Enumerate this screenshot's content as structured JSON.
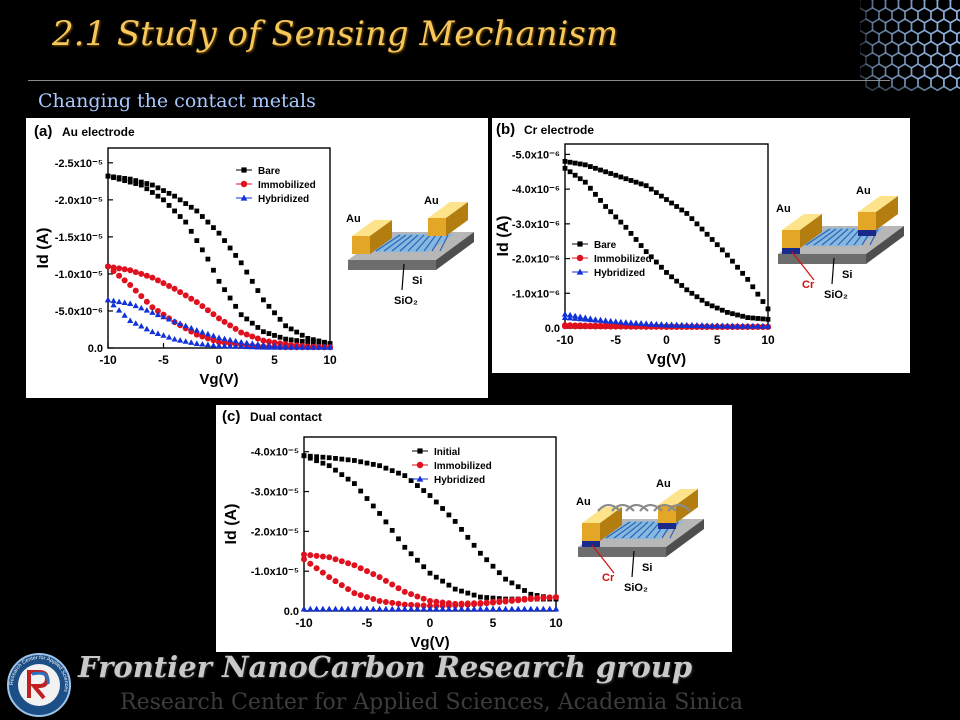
{
  "slide": {
    "title": "2.1 Study of Sensing Mechanism",
    "subtitle": "Changing the contact metals",
    "footer_group": "Frontier NanoCarbon Research group",
    "footer_institution": "Research Center for Applied Sciences, Academia Sinica",
    "logo_text": "Research Center for Applied Sciences",
    "accent_title": "#f6c75b",
    "accent_subtitle": "#a8c8ff"
  },
  "chart_data": [
    {
      "type": "line",
      "panel_label": "(a)",
      "title": "Au electrode",
      "xlabel": "Vg(V)",
      "ylabel": "Id (A)",
      "xlim": [
        -10,
        10
      ],
      "ylim": [
        0,
        2.7e-05
      ],
      "x_ticks": [
        -10,
        -5,
        0,
        5,
        10
      ],
      "x_tick_labels": [
        "-10",
        "-5",
        "0",
        "5",
        "10"
      ],
      "y_ticks": [
        0,
        5e-06,
        1e-05,
        1.5e-05,
        2e-05,
        2.5e-05
      ],
      "y_tick_labels": [
        "0.0",
        "-5.0x10⁻⁶",
        "-1.0x10⁻⁵",
        "-1.5x10⁻⁵",
        "-2.0x10⁻⁵",
        "-2.5x10⁻⁵"
      ],
      "legend_position": "top-left",
      "series": [
        {
          "name": "Bare",
          "color": "#000000",
          "marker": "square",
          "forward_x": [
            -10,
            -7,
            -5,
            -3,
            -1,
            0,
            2,
            4,
            6,
            8,
            10
          ],
          "forward_y": [
            2.32e-05,
            2.2e-05,
            2e-05,
            1.7e-05,
            1.2e-05,
            9e-06,
            4.5e-06,
            2.2e-06,
            1.2e-06,
            8e-07,
            6e-07
          ],
          "reverse_x": [
            10,
            8,
            6,
            4,
            2,
            0,
            -2,
            -4,
            -6,
            -8,
            -10
          ],
          "reverse_y": [
            6e-07,
            1.3e-06,
            3e-06,
            6.5e-06,
            1.15e-05,
            1.55e-05,
            1.85e-05,
            2.05e-05,
            2.2e-05,
            2.28e-05,
            2.32e-05
          ]
        },
        {
          "name": "Immobilized",
          "color": "#e0101e",
          "marker": "circle",
          "forward_x": [
            -10,
            -8,
            -6,
            -4,
            -2,
            0,
            2,
            4,
            6,
            8,
            10
          ],
          "forward_y": [
            1.1e-05,
            8.5e-06,
            5.5e-06,
            3.5e-06,
            1.8e-06,
            8e-07,
            4e-07,
            2e-07,
            1e-07,
            1e-07,
            1e-07
          ],
          "reverse_x": [
            10,
            8,
            6,
            4,
            2,
            0,
            -2,
            -4,
            -6,
            -8,
            -10
          ],
          "reverse_y": [
            1e-07,
            2e-07,
            5e-07,
            1e-06,
            2.1e-06,
            4e-06,
            6.2e-06,
            8e-06,
            9.5e-06,
            1.05e-05,
            1.1e-05
          ]
        },
        {
          "name": "Hybridized",
          "color": "#1032d8",
          "marker": "triangle",
          "forward_x": [
            -10,
            -8,
            -6,
            -4,
            -2,
            0,
            2,
            4,
            6,
            8,
            10
          ],
          "forward_y": [
            6.5e-06,
            3.7e-06,
            2.2e-06,
            1.2e-06,
            6e-07,
            3e-07,
            2e-07,
            1e-07,
            1e-07,
            1e-07,
            1e-07
          ],
          "reverse_x": [
            10,
            8,
            6,
            4,
            2,
            0,
            -2,
            -4,
            -6,
            -8,
            -10
          ],
          "reverse_y": [
            1e-07,
            1e-07,
            2e-07,
            4e-07,
            8e-07,
            1.4e-06,
            2.4e-06,
            3.6e-06,
            4.8e-06,
            6e-06,
            6.5e-06
          ]
        }
      ],
      "inset": {
        "labels": [
          "Au",
          "Au",
          "Si",
          "SiO₂"
        ]
      }
    },
    {
      "type": "line",
      "panel_label": "(b)",
      "title": "Cr electrode",
      "xlabel": "Vg(V)",
      "ylabel": "Id (A)",
      "xlim": [
        -10,
        10
      ],
      "ylim": [
        0,
        5.3e-06
      ],
      "x_ticks": [
        -10,
        -5,
        0,
        5,
        10
      ],
      "x_tick_labels": [
        "-10",
        "-5",
        "0",
        "5",
        "10"
      ],
      "y_ticks": [
        0,
        1e-06,
        2e-06,
        3e-06,
        4e-06,
        5e-06
      ],
      "y_tick_labels": [
        "0.0",
        "-1.0x10⁻⁶",
        "-2.0x10⁻⁶",
        "-3.0x10⁻⁶",
        "-4.0x10⁻⁶",
        "-5.0x10⁻⁶"
      ],
      "legend_position": "left",
      "series": [
        {
          "name": "Bare",
          "color": "#000000",
          "marker": "square",
          "forward_x": [
            -10,
            -8,
            -6,
            -4,
            -2,
            0,
            2,
            4,
            6,
            8,
            10
          ],
          "forward_y": [
            4.6e-06,
            4.2e-06,
            3.5e-06,
            2.9e-06,
            2.2e-06,
            1.6e-06,
            1.1e-06,
            7e-07,
            4.5e-07,
            3e-07,
            2.5e-07
          ],
          "reverse_x": [
            10,
            8,
            6,
            4,
            2,
            0,
            -2,
            -4,
            -6,
            -8,
            -10
          ],
          "reverse_y": [
            5.5e-07,
            1.4e-06,
            2.1e-06,
            2.7e-06,
            3.3e-06,
            3.7e-06,
            4.1e-06,
            4.3e-06,
            4.5e-06,
            4.7e-06,
            4.8e-06
          ]
        },
        {
          "name": "Immobilized",
          "color": "#e0101e",
          "marker": "circle",
          "forward_x": [
            -10,
            -5,
            0,
            5,
            10
          ],
          "forward_y": [
            5e-08,
            4e-08,
            3e-08,
            3e-08,
            3e-08
          ],
          "reverse_x": [
            10,
            5,
            0,
            -5,
            -10
          ],
          "reverse_y": [
            4e-08,
            4e-08,
            5e-08,
            6e-08,
            8e-08
          ]
        },
        {
          "name": "Hybridized",
          "color": "#1032d8",
          "marker": "triangle",
          "forward_x": [
            -10,
            -7,
            -4,
            0,
            4,
            7,
            10
          ],
          "forward_y": [
            4e-07,
            2.5e-07,
            1.5e-07,
            8e-08,
            6e-08,
            5e-08,
            5e-08
          ],
          "reverse_x": [
            10,
            5,
            0,
            -5,
            -10
          ],
          "reverse_y": [
            5e-08,
            7e-08,
            1e-07,
            1.8e-07,
            3e-07
          ]
        }
      ],
      "inset": {
        "labels": [
          "Au",
          "Au",
          "Cr",
          "Si",
          "SiO₂"
        ]
      }
    },
    {
      "type": "line",
      "panel_label": "(c)",
      "title": "Dual contact",
      "xlabel": "Vg(V)",
      "ylabel": "Id (A)",
      "xlim": [
        -10,
        10
      ],
      "ylim": [
        0,
        4.37e-05
      ],
      "x_ticks": [
        -10,
        -5,
        0,
        5,
        10
      ],
      "x_tick_labels": [
        "-10",
        "-5",
        "0",
        "5",
        "10"
      ],
      "y_ticks": [
        0,
        1e-05,
        2e-05,
        3e-05,
        4e-05
      ],
      "y_tick_labels": [
        "0.0",
        "-1.0x10⁻⁵",
        "-2.0x10⁻⁵",
        "-3.0x10⁻⁵",
        "-4.0x10⁻⁵"
      ],
      "legend_position": "top-right",
      "series": [
        {
          "name": "Initial",
          "color": "#000000",
          "marker": "square",
          "forward_x": [
            -10,
            -8,
            -6,
            -4,
            -2,
            0,
            2,
            4,
            6,
            8,
            10
          ],
          "forward_y": [
            3.9e-05,
            3.65e-05,
            3.2e-05,
            2.45e-05,
            1.6e-05,
            9.5e-06,
            5.5e-06,
            3.5e-06,
            3e-06,
            3e-06,
            3e-06
          ],
          "reverse_x": [
            10,
            8,
            6,
            4,
            2,
            0,
            -2,
            -4,
            -6,
            -8,
            -10
          ],
          "reverse_y": [
            3e-06,
            4.2e-06,
            8e-06,
            1.45e-05,
            2.25e-05,
            2.9e-05,
            3.4e-05,
            3.65e-05,
            3.78e-05,
            3.85e-05,
            3.9e-05
          ]
        },
        {
          "name": "Immobilized",
          "color": "#e0101e",
          "marker": "circle",
          "forward_x": [
            -10,
            -8,
            -6,
            -4,
            -2,
            0,
            2,
            4,
            6,
            8,
            10
          ],
          "forward_y": [
            1.3e-05,
            8.5e-06,
            4.5e-06,
            2.5e-06,
            1.6e-06,
            1.3e-06,
            1.4e-06,
            1.8e-06,
            2.4e-06,
            3e-06,
            3.5e-06
          ],
          "reverse_x": [
            10,
            8,
            6,
            4,
            2,
            0,
            -2,
            -4,
            -6,
            -8,
            -10
          ],
          "reverse_y": [
            3.5e-06,
            3.2e-06,
            2.6e-06,
            2e-06,
            1.8e-06,
            2.5e-06,
            4.8e-06,
            8.5e-06,
            1.15e-05,
            1.35e-05,
            1.42e-05
          ]
        },
        {
          "name": "Hybridized",
          "color": "#1032d8",
          "marker": "triangle",
          "forward_x": [
            -10,
            -5,
            0,
            5,
            10
          ],
          "forward_y": [
            5e-07,
            5e-07,
            5e-07,
            5e-07,
            5e-07
          ],
          "reverse_x": [
            10,
            0,
            -10
          ],
          "reverse_y": [
            5e-07,
            5e-07,
            5e-07
          ]
        }
      ],
      "inset": {
        "labels": [
          "Au",
          "Au",
          "Cr",
          "Si",
          "SiO₂"
        ]
      }
    }
  ]
}
